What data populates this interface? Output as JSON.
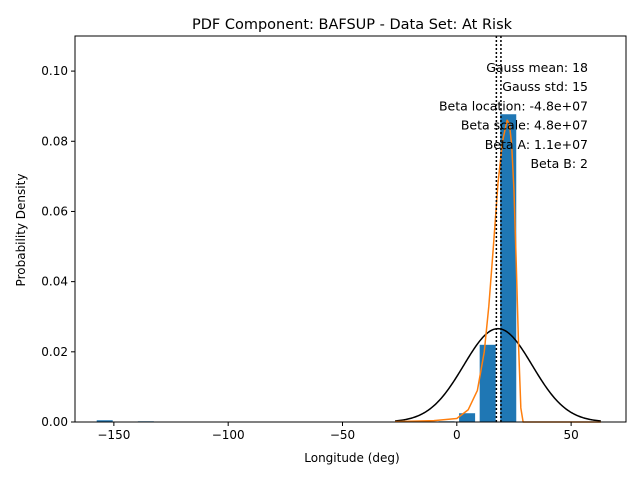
{
  "chart_data": {
    "type": "bar",
    "title": "PDF Component: BAFSUP - Data Set: At Risk",
    "xlabel": "Longitude (deg)",
    "ylabel": "Probability Density",
    "xlim": [
      -167,
      74
    ],
    "ylim": [
      0,
      0.11
    ],
    "xticks": [
      -150,
      -100,
      -50,
      0,
      50
    ],
    "xtick_labels": [
      "−150",
      "−100",
      "−50",
      "0",
      "50"
    ],
    "yticks": [
      0.0,
      0.02,
      0.04,
      0.06,
      0.08,
      0.1
    ],
    "ytick_labels": [
      "0.00",
      "0.02",
      "0.04",
      "0.06",
      "0.08",
      "0.10"
    ],
    "grid": false,
    "histogram": {
      "color": "#1f77b4",
      "bins": [
        {
          "x0": -157.5,
          "x1": -150.5,
          "value": 0.0005
        },
        {
          "x0": -139.5,
          "x1": -132.5,
          "value": 0.0002
        },
        {
          "x0": -34.5,
          "x1": -28.5,
          "value": 0.0001
        },
        {
          "x0": -8,
          "x1": -1,
          "value": 0.0002
        },
        {
          "x0": 1,
          "x1": 8,
          "value": 0.0025
        },
        {
          "x0": 10,
          "x1": 17,
          "value": 0.022
        },
        {
          "x0": 19,
          "x1": 26,
          "value": 0.0877
        }
      ]
    },
    "gauss": {
      "color": "#000000",
      "mean": 18,
      "std": 15,
      "x_range": [
        -27,
        63
      ]
    },
    "beta_curve": {
      "color": "#ff7f0e",
      "points": [
        [
          -27,
          0.0001
        ],
        [
          -10,
          0.0004
        ],
        [
          0,
          0.001
        ],
        [
          5,
          0.0035
        ],
        [
          9,
          0.009
        ],
        [
          12,
          0.02
        ],
        [
          14,
          0.033
        ],
        [
          16,
          0.05
        ],
        [
          18,
          0.068
        ],
        [
          20,
          0.08
        ],
        [
          22,
          0.086
        ],
        [
          23,
          0.085
        ],
        [
          24,
          0.079
        ],
        [
          25,
          0.066
        ],
        [
          26,
          0.045
        ],
        [
          27,
          0.022
        ],
        [
          28,
          0.004
        ],
        [
          29,
          0.0
        ],
        [
          63,
          0.0
        ]
      ]
    },
    "vlines": [
      {
        "x": 17.3,
        "style": "dotted",
        "color": "#000000"
      },
      {
        "x": 19.3,
        "style": "dotted",
        "color": "#000000"
      }
    ],
    "annotations": [
      "Gauss mean: 18",
      "Gauss std: 15",
      "Beta location: -4.8e+07",
      "Beta scale: 4.8e+07",
      "Beta A: 1.1e+07",
      "Beta B: 2"
    ]
  }
}
